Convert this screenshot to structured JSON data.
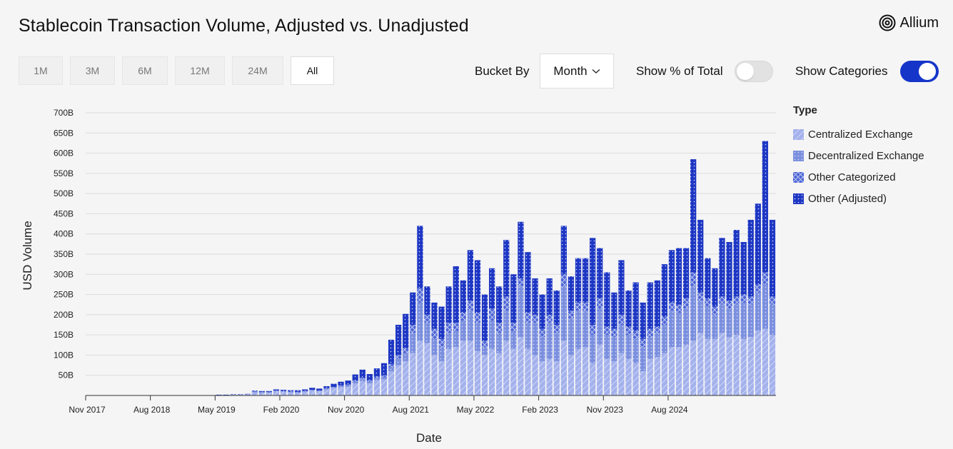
{
  "title": "Stablecoin Transaction Volume, Adjusted vs. Unadjusted",
  "brand": "Allium",
  "ranges": [
    "1M",
    "3M",
    "6M",
    "12M",
    "24M",
    "All"
  ],
  "active_range": "All",
  "bucket": {
    "label": "Bucket By",
    "value": "Month"
  },
  "toggles": {
    "pct_label": "Show % of Total",
    "pct_on": false,
    "cat_label": "Show Categories",
    "cat_on": true
  },
  "colors": {
    "cex": "#a3b1ec",
    "dex": "#7b8fdf",
    "other_cat": "#4d65d6",
    "other_adj": "#1e37c4"
  },
  "chart_data": {
    "type": "bar",
    "stacked": true,
    "xlabel": "Date",
    "ylabel": "USD Volume",
    "y_ticks": [
      "50B",
      "100B",
      "150B",
      "200B",
      "250B",
      "300B",
      "350B",
      "400B",
      "450B",
      "500B",
      "550B",
      "600B",
      "650B",
      "700B"
    ],
    "x_ticks": [
      "Nov 2017",
      "Aug 2018",
      "May 2019",
      "Feb 2020",
      "Nov 2020",
      "Aug 2021",
      "May 2022",
      "Feb 2023",
      "Nov 2023",
      "Aug 2024"
    ],
    "ylim": [
      0,
      700
    ],
    "grid": true,
    "legend_title": "Type",
    "legend_position": "right",
    "series": [
      {
        "name": "Centralized Exchange",
        "values": [
          0,
          0,
          0,
          0,
          0,
          0,
          0,
          0,
          0,
          0,
          0,
          0,
          0,
          0,
          0,
          0,
          0,
          0,
          1,
          1,
          2,
          2,
          3,
          8,
          7,
          7,
          10,
          9,
          8,
          7,
          9,
          12,
          10,
          15,
          18,
          20,
          22,
          30,
          35,
          30,
          38,
          40,
          60,
          75,
          85,
          105,
          135,
          130,
          100,
          85,
          115,
          120,
          135,
          135,
          110,
          100,
          115,
          105,
          135,
          115,
          145,
          115,
          100,
          85,
          90,
          85,
          135,
          100,
          115,
          120,
          80,
          125,
          90,
          85,
          105,
          90,
          80,
          60,
          90,
          95,
          105,
          120,
          120,
          125,
          135,
          155,
          140,
          140,
          155,
          145,
          150,
          140,
          145,
          160,
          165,
          150
        ],
        "_note": ""
      },
      {
        "name": "Decentralized Exchange",
        "values": [
          0,
          0,
          0,
          0,
          0,
          0,
          0,
          0,
          0,
          0,
          0,
          0,
          0,
          0,
          0,
          0,
          0,
          0,
          0,
          0,
          0,
          0,
          0,
          1,
          1,
          1,
          1,
          1,
          1,
          1,
          1,
          1,
          1,
          2,
          2,
          3,
          3,
          4,
          5,
          4,
          5,
          5,
          10,
          15,
          20,
          50,
          95,
          50,
          40,
          35,
          40,
          40,
          50,
          75,
          70,
          20,
          70,
          50,
          75,
          45,
          125,
          65,
          80,
          60,
          90,
          70,
          135,
          90,
          95,
          90,
          70,
          90,
          60,
          60,
          70,
          60,
          60,
          60,
          55,
          60,
          70,
          90,
          85,
          90,
          135,
          80,
          80,
          60,
          70,
          70,
          75,
          90,
          80,
          95,
          110,
          75
        ]
      },
      {
        "name": "Other Categorized",
        "values": [
          0,
          0,
          0,
          0,
          0,
          0,
          0,
          0,
          0,
          0,
          0,
          0,
          0,
          0,
          0,
          0,
          0,
          0,
          0,
          0,
          0,
          0,
          0,
          1,
          1,
          1,
          1,
          1,
          1,
          1,
          1,
          1,
          1,
          1,
          1,
          2,
          2,
          3,
          4,
          4,
          4,
          5,
          8,
          10,
          12,
          20,
          35,
          20,
          25,
          20,
          25,
          20,
          20,
          25,
          25,
          15,
          30,
          25,
          35,
          20,
          20,
          25,
          20,
          20,
          20,
          20,
          30,
          20,
          20,
          20,
          25,
          25,
          20,
          20,
          25,
          20,
          20,
          20,
          20,
          15,
          20,
          20,
          20,
          25,
          35,
          20,
          20,
          20,
          20,
          20,
          20,
          20,
          20,
          20,
          30,
          20
        ]
      },
      {
        "name": "Other (Adjusted)",
        "values": [
          0,
          0,
          0,
          0,
          0,
          0,
          0,
          0,
          0,
          0,
          0,
          0,
          0,
          0,
          0,
          0,
          0,
          0,
          1,
          1,
          1,
          1,
          1,
          2,
          2,
          2,
          3,
          3,
          3,
          4,
          4,
          5,
          5,
          5,
          8,
          9,
          10,
          15,
          20,
          15,
          20,
          30,
          60,
          75,
          85,
          80,
          155,
          70,
          65,
          80,
          90,
          140,
          80,
          125,
          130,
          115,
          100,
          90,
          140,
          120,
          140,
          150,
          90,
          85,
          90,
          85,
          120,
          85,
          110,
          110,
          215,
          125,
          135,
          90,
          135,
          90,
          120,
          90,
          115,
          115,
          130,
          130,
          140,
          125,
          280,
          180,
          100,
          95,
          145,
          145,
          165,
          130,
          190,
          200,
          325,
          190
        ]
      }
    ]
  }
}
